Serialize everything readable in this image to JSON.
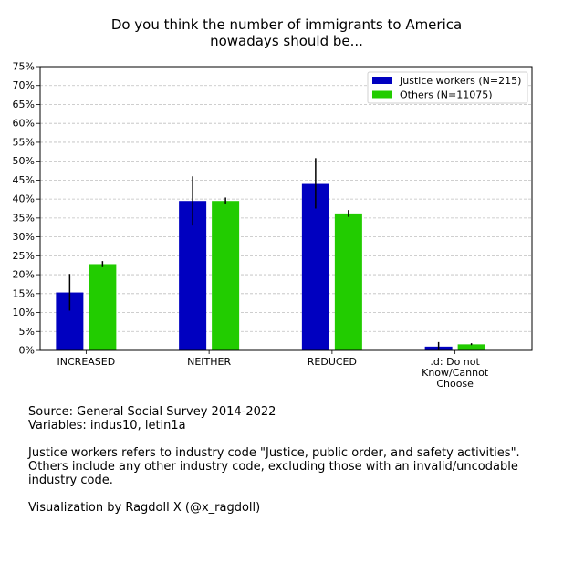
{
  "chart_data": {
    "type": "bar",
    "title": [
      "Do you think the number of immigrants to America",
      "nowadays should be..."
    ],
    "categories": [
      [
        "INCREASED"
      ],
      [
        "NEITHER"
      ],
      [
        "REDUCED"
      ],
      [
        ".d:  Do not",
        "Know/Cannot",
        "Choose"
      ]
    ],
    "series": [
      {
        "name": "Justice workers (N=215)",
        "color": "#0000c0",
        "values": [
          15.3,
          39.5,
          44.0,
          1.0
        ],
        "err_low": [
          10.5,
          33.0,
          37.5,
          0.0
        ],
        "err_high": [
          20.2,
          46.0,
          50.8,
          2.2
        ]
      },
      {
        "name": "Others (N=11075)",
        "color": "#22cc00",
        "values": [
          22.8,
          39.5,
          36.2,
          1.6
        ],
        "err_low": [
          22.0,
          38.6,
          35.3,
          1.4
        ],
        "err_high": [
          23.6,
          40.4,
          37.1,
          1.9
        ]
      }
    ],
    "ylim": [
      0,
      75
    ],
    "yticks": [
      "0%",
      "5%",
      "10%",
      "15%",
      "20%",
      "25%",
      "30%",
      "35%",
      "40%",
      "45%",
      "50%",
      "55%",
      "60%",
      "65%",
      "70%",
      "75%"
    ],
    "ytick_values": [
      0,
      5,
      10,
      15,
      20,
      25,
      30,
      35,
      40,
      45,
      50,
      55,
      60,
      65,
      70,
      75
    ],
    "grid": true,
    "legend_position": "top-right",
    "xlabel": "",
    "ylabel": ""
  },
  "footnote": {
    "source": "Source: General Social Survey 2014-2022",
    "variables": "Variables: indus10, letin1a",
    "justice_note": "Justice workers refers to industry code \"Justice, public order, and safety activities\".",
    "others_note": "Others include any other industry code, excluding those with an invalid/uncodable industry code.",
    "credit": "Visualization by Ragdoll X (@x_ragdoll)"
  }
}
